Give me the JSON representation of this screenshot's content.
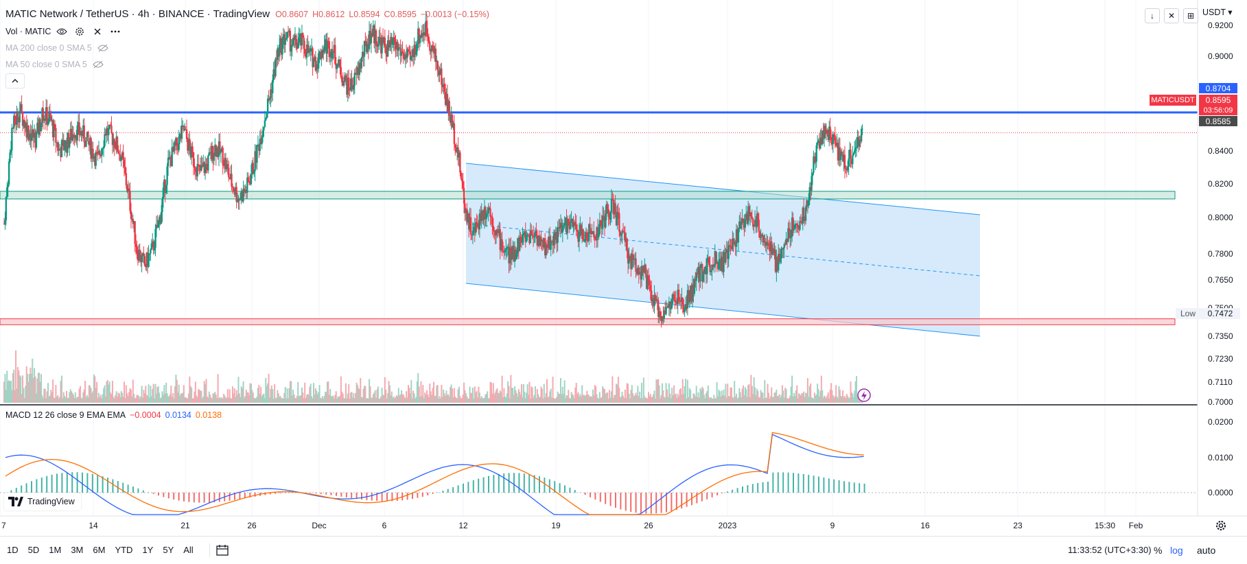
{
  "header": {
    "symbol_title": "MATIC Network / TetherUS · 4h · BINANCE · TradingView",
    "ohlc": {
      "o": "O0.8607",
      "h": "H0.8612",
      "l": "L0.8594",
      "c": "C0.8595",
      "chg": "−0.0013 (−0.15%)"
    },
    "currency": "USDT"
  },
  "indicators": {
    "vol_label": "Vol · MATIC",
    "ma200_label": "MA 200 close 0 SMA 5",
    "ma50_label": "MA 50 close 0 SMA 5"
  },
  "top_buttons": [
    "↓",
    "✕",
    "⊞"
  ],
  "price_axis": {
    "ticks": [
      "0.9200",
      "0.9000",
      "0.8600",
      "0.8400",
      "0.8200",
      "0.8000",
      "0.7800",
      "0.7650",
      "0.7500",
      "0.7350",
      "0.7230",
      "0.7110",
      "0.7000"
    ],
    "tags": {
      "line_price": "0.8704",
      "last_price": "0.8595",
      "countdown": "03:56:09",
      "prev_close": "0.8585",
      "symbol_tag": "MATICUSDT",
      "low_label": "Low",
      "low_value": "0.7472"
    },
    "colors": {
      "blue_line": "#2962ff",
      "last": "#f23645",
      "dark": "#4a4a4a"
    }
  },
  "macd": {
    "label": "MACD 12 26 close 9 EMA EMA",
    "v1": "−0.0004",
    "v2": "0.0134",
    "v3": "0.0138",
    "colors": {
      "v1": "#f23645",
      "v2": "#2962ff",
      "v3": "#ff6d00"
    },
    "ticks": [
      "0.0200",
      "0.0100",
      "0.0000"
    ]
  },
  "time_axis": {
    "ticks": [
      "7",
      "14",
      "21",
      "26",
      "Dec",
      "6",
      "12",
      "19",
      "26",
      "2023",
      "9",
      "16",
      "23",
      "15:30",
      "Feb"
    ]
  },
  "watermark": "TradingView",
  "bottom_bar": {
    "ranges": [
      "1D",
      "5D",
      "1M",
      "3M",
      "6M",
      "YTD",
      "1Y",
      "5Y",
      "All"
    ],
    "clock": "11:33:52 (UTC+3:30)",
    "percent": "%",
    "log": "log",
    "auto": "auto"
  },
  "chart_data": {
    "type": "candlestick",
    "price_series": [
      0.805,
      0.86,
      0.872,
      0.86,
      0.855,
      0.87,
      0.865,
      0.848,
      0.852,
      0.86,
      0.858,
      0.85,
      0.842,
      0.86,
      0.855,
      0.845,
      0.82,
      0.79,
      0.78,
      0.79,
      0.81,
      0.84,
      0.85,
      0.86,
      0.845,
      0.835,
      0.84,
      0.85,
      0.845,
      0.83,
      0.82,
      0.825,
      0.84,
      0.86,
      0.88,
      0.905,
      0.915,
      0.91,
      0.912,
      0.905,
      0.9,
      0.91,
      0.908,
      0.895,
      0.885,
      0.89,
      0.905,
      0.918,
      0.912,
      0.908,
      0.91,
      0.905,
      0.9,
      0.915,
      0.92,
      0.905,
      0.89,
      0.87,
      0.85,
      0.815,
      0.798,
      0.81,
      0.815,
      0.8,
      0.79,
      0.785,
      0.795,
      0.798,
      0.8,
      0.79,
      0.795,
      0.8,
      0.805,
      0.802,
      0.798,
      0.799,
      0.8,
      0.81,
      0.815,
      0.8,
      0.785,
      0.78,
      0.775,
      0.76,
      0.752,
      0.755,
      0.762,
      0.755,
      0.765,
      0.775,
      0.78,
      0.785,
      0.782,
      0.79,
      0.8,
      0.81,
      0.808,
      0.8,
      0.79,
      0.78,
      0.795,
      0.805,
      0.805,
      0.82,
      0.85,
      0.86,
      0.855,
      0.845,
      0.84,
      0.85,
      0.8595
    ],
    "horizontal_lines": [
      {
        "price": 0.8704,
        "color": "#2962ff"
      },
      {
        "price_band": [
          0.8195,
          0.824
        ],
        "color": "#089981"
      },
      {
        "price_band": [
          0.7455,
          0.749
        ],
        "color": "#f23645"
      }
    ],
    "channel": {
      "color": "#2196f3",
      "fill": "#cfe6fb"
    },
    "macd_lines": [
      "#2962ff",
      "#ff6d00"
    ]
  }
}
